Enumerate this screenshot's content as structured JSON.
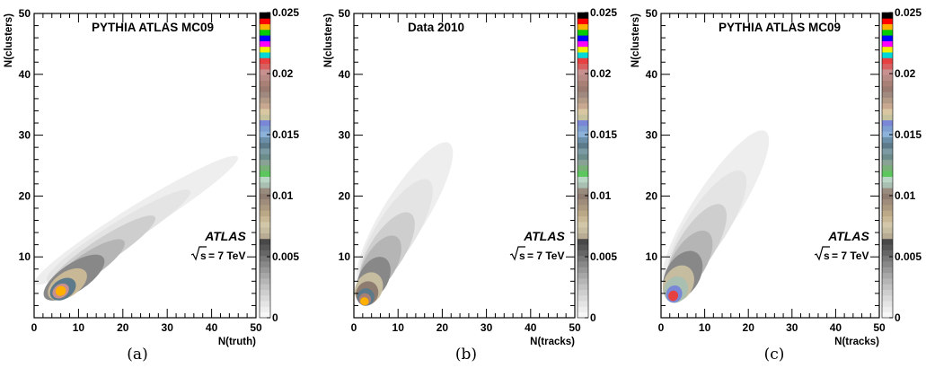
{
  "chart_data": [
    {
      "type": "heatmap",
      "panel_label": "(a)",
      "title": "PYTHIA ATLAS MC09",
      "xlabel": "N(truth)",
      "ylabel": "N(clusters)",
      "xlim": [
        0,
        50
      ],
      "ylim": [
        0,
        50
      ],
      "x_ticks": [
        "0",
        "10",
        "20",
        "30",
        "40",
        "50"
      ],
      "y_ticks": [
        "10",
        "20",
        "30",
        "40",
        "50"
      ],
      "zlim": [
        0,
        0.025
      ],
      "z_ticks": [
        "0",
        "0.005",
        "0.01",
        "0.015",
        "0.02",
        "0.025"
      ],
      "atlas_label": "ATLAS",
      "energy_label": "= 7 TeV",
      "contours": [
        {
          "x": 23,
          "y": 16,
          "sx": 27,
          "sy": 2.3,
          "angle": 32,
          "level": 0.0005
        },
        {
          "x": 19,
          "y": 13.5,
          "sx": 19,
          "sy": 2.1,
          "angle": 32,
          "level": 0.001
        },
        {
          "x": 15.5,
          "y": 11,
          "sx": 14,
          "sy": 2.0,
          "angle": 33,
          "level": 0.002
        },
        {
          "x": 12,
          "y": 8.5,
          "sx": 10,
          "sy": 2.0,
          "angle": 34,
          "level": 0.003
        },
        {
          "x": 9,
          "y": 6.6,
          "sx": 8,
          "sy": 2.3,
          "angle": 34,
          "level": 0.0045
        },
        {
          "x": 7.5,
          "y": 5.5,
          "sx": 5,
          "sy": 2.0,
          "angle": 34,
          "level": 0.008
        },
        {
          "x": 6.5,
          "y": 4.7,
          "sx": 3.2,
          "sy": 1.6,
          "angle": 34,
          "level": 0.014
        },
        {
          "x": 6.0,
          "y": 4.4,
          "sx": 2.0,
          "sy": 1.1,
          "angle": 34,
          "level": 0.02
        },
        {
          "x": 6.0,
          "y": 4.4,
          "sx": 1.2,
          "sy": 0.8,
          "angle": 34,
          "level": 0.024
        }
      ]
    },
    {
      "type": "heatmap",
      "panel_label": "(b)",
      "title": "Data 2010",
      "xlabel": "N(tracks)",
      "ylabel": "N(clusters)",
      "xlim": [
        0,
        50
      ],
      "ylim": [
        0,
        50
      ],
      "x_ticks": [
        "0",
        "10",
        "20",
        "30",
        "40",
        "50"
      ],
      "y_ticks": [
        "10",
        "20",
        "30",
        "40",
        "50"
      ],
      "zlim": [
        0,
        0.025
      ],
      "z_ticks": [
        "0",
        "0.005",
        "0.01",
        "0.015",
        "0.02",
        "0.025"
      ],
      "atlas_label": "ATLAS",
      "energy_label": "= 7 TeV",
      "contours": [
        {
          "x": 11.5,
          "y": 17,
          "sx": 19,
          "sy": 3.6,
          "angle": 58,
          "level": 0.0005
        },
        {
          "x": 9.5,
          "y": 14,
          "sx": 14,
          "sy": 3.3,
          "angle": 58,
          "level": 0.001
        },
        {
          "x": 7.5,
          "y": 11,
          "sx": 10,
          "sy": 2.9,
          "angle": 58,
          "level": 0.002
        },
        {
          "x": 6,
          "y": 8.8,
          "sx": 7.2,
          "sy": 2.6,
          "angle": 60,
          "level": 0.003
        },
        {
          "x": 4.5,
          "y": 6.5,
          "sx": 5.2,
          "sy": 2.4,
          "angle": 62,
          "level": 0.0045
        },
        {
          "x": 3.4,
          "y": 4.8,
          "sx": 3.8,
          "sy": 2.2,
          "angle": 64,
          "level": 0.007
        },
        {
          "x": 3.0,
          "y": 4.0,
          "sx": 2.8,
          "sy": 1.8,
          "angle": 66,
          "level": 0.01
        },
        {
          "x": 2.7,
          "y": 3.4,
          "sx": 2.0,
          "sy": 1.4,
          "angle": 68,
          "level": 0.014
        },
        {
          "x": 2.5,
          "y": 3.0,
          "sx": 1.4,
          "sy": 1.0,
          "angle": 70,
          "level": 0.019
        },
        {
          "x": 2.4,
          "y": 2.7,
          "sx": 0.9,
          "sy": 0.7,
          "angle": 70,
          "level": 0.024
        }
      ]
    },
    {
      "type": "heatmap",
      "panel_label": "(c)",
      "title": "PYTHIA ATLAS MC09",
      "xlabel": "N(tracks)",
      "ylabel": "N(clusters)",
      "xlim": [
        0,
        50
      ],
      "ylim": [
        0,
        50
      ],
      "x_ticks": [
        "0",
        "10",
        "20",
        "30",
        "40",
        "50"
      ],
      "y_ticks": [
        "10",
        "20",
        "30",
        "40",
        "50"
      ],
      "zlim": [
        0,
        0.025
      ],
      "z_ticks": [
        "0",
        "0.005",
        "0.01",
        "0.015",
        "0.02",
        "0.025"
      ],
      "atlas_label": "ATLAS",
      "energy_label": "= 7 TeV",
      "contours": [
        {
          "x": 12.5,
          "y": 18,
          "sx": 21,
          "sy": 3.7,
          "angle": 57,
          "level": 0.0005
        },
        {
          "x": 10.5,
          "y": 15,
          "sx": 15,
          "sy": 3.4,
          "angle": 57,
          "level": 0.001
        },
        {
          "x": 8.2,
          "y": 11.8,
          "sx": 11,
          "sy": 3.0,
          "angle": 58,
          "level": 0.002
        },
        {
          "x": 6.5,
          "y": 9.2,
          "sx": 8,
          "sy": 2.8,
          "angle": 59,
          "level": 0.003
        },
        {
          "x": 5.0,
          "y": 7.0,
          "sx": 6,
          "sy": 2.8,
          "angle": 60,
          "level": 0.0045
        },
        {
          "x": 4.0,
          "y": 5.6,
          "sx": 4.4,
          "sy": 2.4,
          "angle": 62,
          "level": 0.007
        },
        {
          "x": 3.4,
          "y": 4.6,
          "sx": 3.1,
          "sy": 1.9,
          "angle": 64,
          "level": 0.011
        },
        {
          "x": 3.0,
          "y": 3.9,
          "sx": 2.0,
          "sy": 1.3,
          "angle": 66,
          "level": 0.016
        },
        {
          "x": 2.8,
          "y": 3.6,
          "sx": 1.2,
          "sy": 0.8,
          "angle": 66,
          "level": 0.021
        }
      ]
    }
  ],
  "colorbar_colors": [
    "#f7f7f7",
    "#eeeeee",
    "#e4e4e4",
    "#d9d9d9",
    "#cecece",
    "#c2c2c2",
    "#b5b5b5",
    "#a7a7a7",
    "#989898",
    "#888888",
    "#787878",
    "#666666",
    "#565656",
    "#484848",
    "#b8ac94",
    "#c6bc9f",
    "#d2c7a9",
    "#c9b896",
    "#bba887",
    "#ac9a80",
    "#9f8c7a",
    "#8e7c70",
    "#9a8b7f",
    "#a8bfb2",
    "#b9d6c5",
    "#5cc75c",
    "#78b078",
    "#8aa296",
    "#6c8c8c",
    "#7c9aa3",
    "#5d7a8a",
    "#6b8fa8",
    "#8cb2d9",
    "#7e9fd1",
    "#7a87d6",
    "#c6c29d",
    "#d9c7a1",
    "#c8a890",
    "#b29a87",
    "#a08a80",
    "#9a7a70",
    "#a88076",
    "#b88a86",
    "#c8908e",
    "#d86060",
    "#e64040",
    "#00d8d8",
    "#f0f000",
    "#ff00ff",
    "#0000ff",
    "#00cc00",
    "#ffb000",
    "#ff0000",
    "#000000"
  ]
}
